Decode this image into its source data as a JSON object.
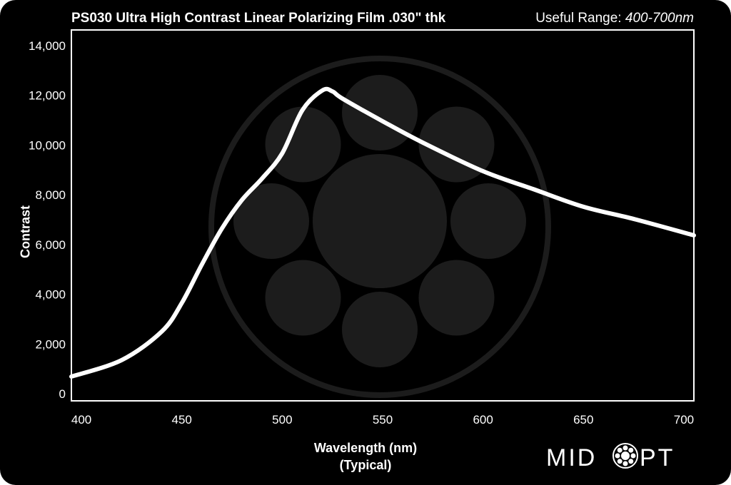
{
  "header": {
    "title": "PS030 Ultra High Contrast Linear Polarizing Film .030\" thk",
    "range_label": "Useful Range: ",
    "range_value": "400-700nm"
  },
  "logo": {
    "text": "MIDOPT"
  },
  "chart_data": {
    "type": "line",
    "title": "PS030 Ultra High Contrast Linear Polarizing Film .030\" thk",
    "xlabel": "Wavelength (nm)",
    "xlabel2": "(Typical)",
    "ylabel": "Contrast",
    "xlim": [
      395,
      705
    ],
    "ylim": [
      0,
      14000
    ],
    "xticks": [
      400,
      450,
      500,
      550,
      600,
      650,
      700
    ],
    "xtick_labels": [
      "400",
      "450",
      "500",
      "550",
      "600",
      "650",
      "700"
    ],
    "yticks": [
      0,
      2000,
      4000,
      6000,
      8000,
      10000,
      12000,
      14000
    ],
    "ytick_labels": [
      "0",
      "2,000",
      "4,000",
      "6,000",
      "8,000",
      "10,000",
      "12,000",
      "14,000"
    ],
    "grid": false,
    "series": [
      {
        "name": "PS030",
        "color": "#ffffff",
        "x": [
          395,
          420,
          440,
          450,
          460,
          470,
          480,
          490,
          500,
          510,
          520,
          525,
          530,
          550,
          570,
          600,
          625,
          650,
          675,
          705
        ],
        "y": [
          690,
          1350,
          2500,
          3650,
          5200,
          6650,
          7800,
          8660,
          9670,
          11400,
          12200,
          12160,
          11870,
          10960,
          10100,
          8950,
          8230,
          7520,
          7030,
          6370
        ]
      }
    ]
  }
}
